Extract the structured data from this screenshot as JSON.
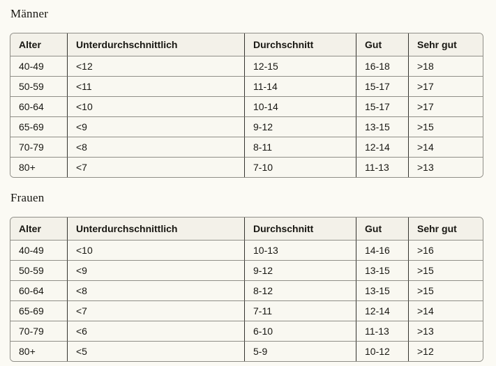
{
  "colors": {
    "page_background": "#fbfaf4",
    "table_header_background": "#f3f1e9",
    "table_cell_background": "#f9f8f1",
    "table_outer_border": "#8f8e87",
    "table_row_border": "#8f8e87",
    "table_column_border": "#34332e",
    "text": "#181712"
  },
  "tables": [
    {
      "title": "Männer",
      "headers": [
        "Alter",
        "Unterdurchschnittlich",
        "Durchschnitt",
        "Gut",
        "Sehr gut"
      ],
      "rows": [
        [
          "40-49",
          "<12",
          "12-15",
          "16-18",
          ">18"
        ],
        [
          "50-59",
          "<11",
          "11-14",
          "15-17",
          ">17"
        ],
        [
          "60-64",
          "<10",
          "10-14",
          "15-17",
          ">17"
        ],
        [
          "65-69",
          "<9",
          "9-12",
          "13-15",
          ">15"
        ],
        [
          "70-79",
          "<8",
          "8-11",
          "12-14",
          ">14"
        ],
        [
          "80+",
          "<7",
          "7-10",
          "11-13",
          ">13"
        ]
      ]
    },
    {
      "title": "Frauen",
      "headers": [
        "Alter",
        "Unterdurchschnittlich",
        "Durchschnitt",
        "Gut",
        "Sehr gut"
      ],
      "rows": [
        [
          "40-49",
          "<10",
          "10-13",
          "14-16",
          ">16"
        ],
        [
          "50-59",
          "<9",
          "9-12",
          "13-15",
          ">15"
        ],
        [
          "60-64",
          "<8",
          "8-12",
          "13-15",
          ">15"
        ],
        [
          "65-69",
          "<7",
          "7-11",
          "12-14",
          ">14"
        ],
        [
          "70-79",
          "<6",
          "6-10",
          "11-13",
          ">13"
        ],
        [
          "80+",
          "<5",
          "5-9",
          "10-12",
          ">12"
        ]
      ]
    }
  ]
}
